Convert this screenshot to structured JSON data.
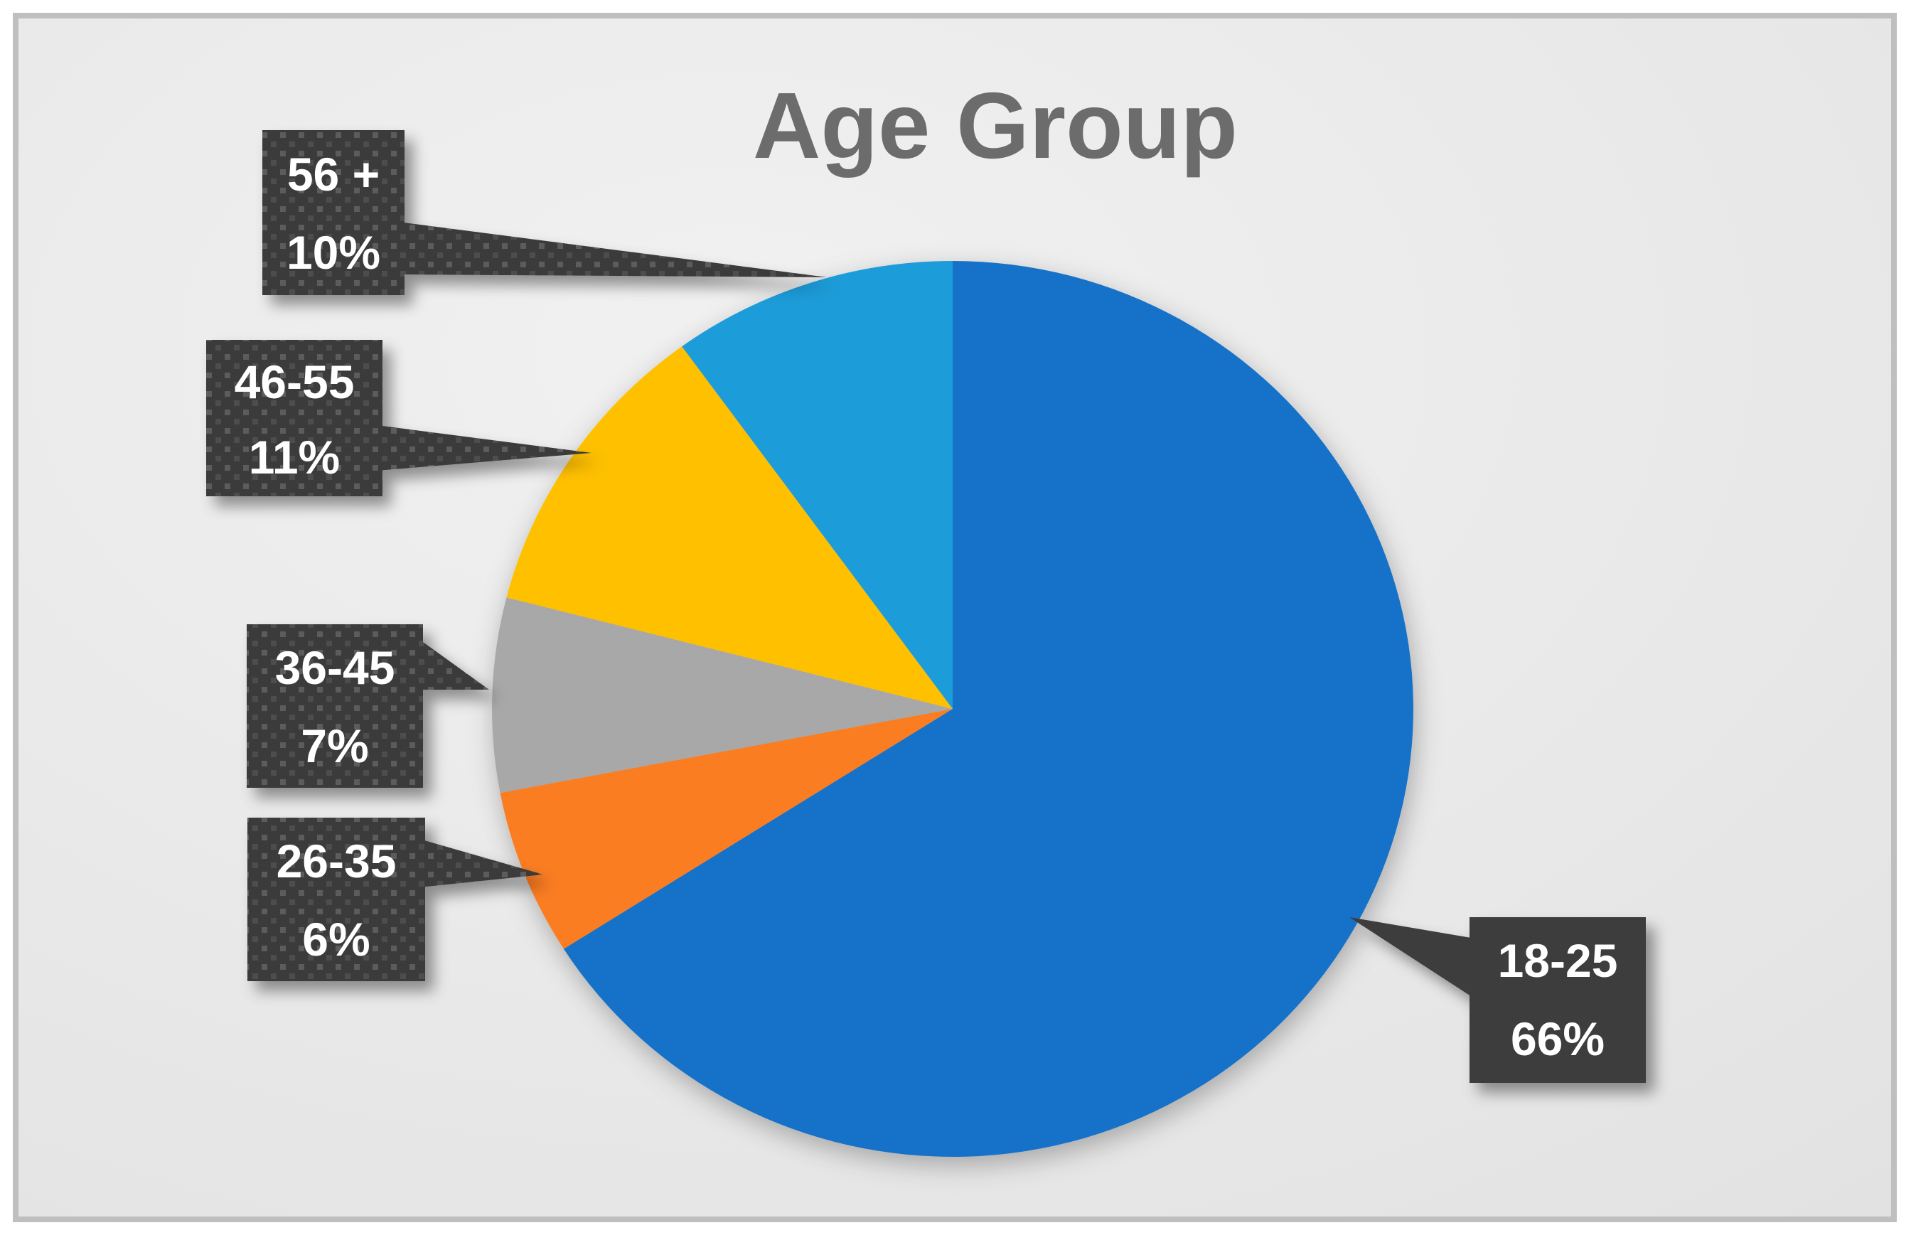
{
  "window": {
    "outer_background": "#FFFFFF",
    "frame_border_color": "#BFBFBF",
    "plot_background": "#E7E7E7"
  },
  "chart_data": {
    "type": "pie",
    "title": "Age Group",
    "categories": [
      "18-25",
      "26-35",
      "36-45",
      "46-55",
      "56 +"
    ],
    "values": [
      66,
      6,
      7,
      11,
      10
    ],
    "value_unit": "percent",
    "series_name": "Age Group",
    "colors": [
      "#1971C8",
      "#FB7D23",
      "#A8A8A8",
      "#FFC001",
      "#1F9CD9"
    ],
    "start_angle_deg": 0,
    "direction": "clockwise",
    "legend_position": "none",
    "data_labels": "callout-boxes-outside"
  },
  "title": {
    "text": "Age Group",
    "color": "#6C6C6C"
  },
  "callouts": [
    {
      "id": "56plus",
      "line1": "56 +",
      "line2": "10%",
      "fill": "dotted-pattern"
    },
    {
      "id": "46-55",
      "line1": "46-55",
      "line2": "11%",
      "fill": "dotted-pattern"
    },
    {
      "id": "36-45",
      "line1": "36-45",
      "line2": "7%",
      "fill": "dotted-pattern"
    },
    {
      "id": "26-35",
      "line1": "26-35",
      "line2": "6%",
      "fill": "dotted-pattern"
    },
    {
      "id": "18-25",
      "line1": "18-25",
      "line2": "66%",
      "fill": "solid"
    }
  ],
  "palette": {
    "slice_18_25": "#1971C8",
    "slice_26_35": "#FB7D23",
    "slice_36_45": "#A8A8A8",
    "slice_46_55": "#FFC001",
    "slice_56_plus": "#1F9CD9",
    "callout_box_dark": "#3A3A3A",
    "callout_box_solid": "#3E3E3E",
    "callout_dot_light": "#5C5C5C",
    "callout_dot_dim": "#4E4E4E",
    "callout_text": "#FFFFFF"
  }
}
